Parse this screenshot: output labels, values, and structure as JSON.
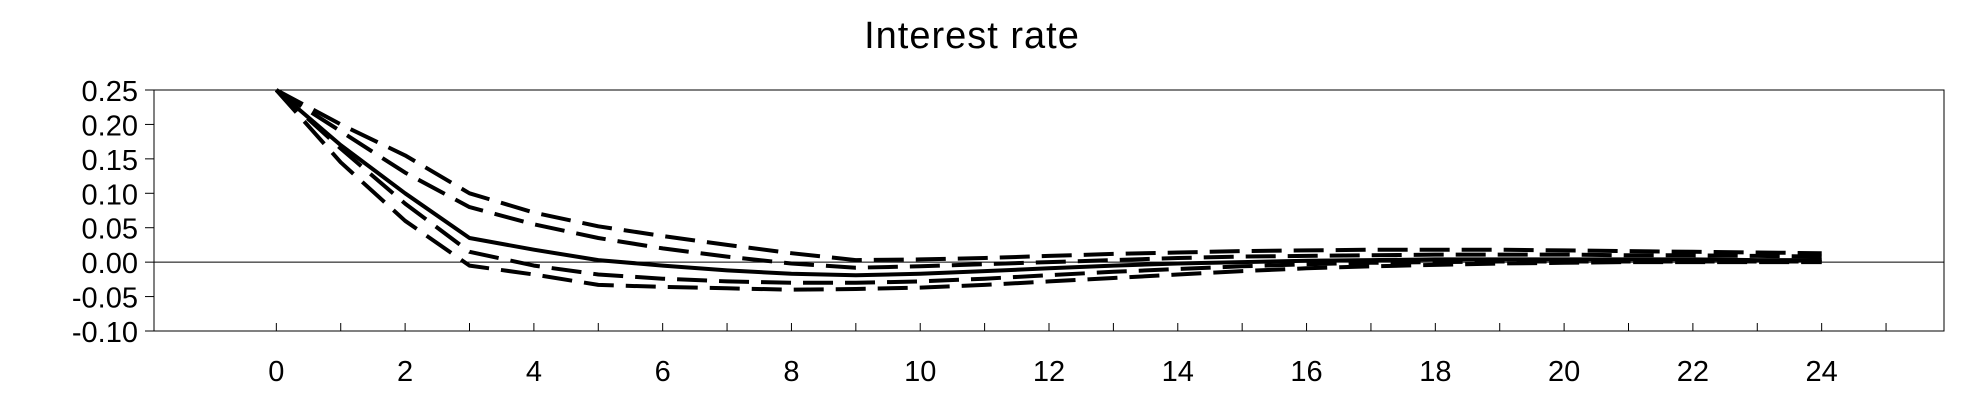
{
  "chart_data": {
    "type": "line",
    "title": "Interest rate",
    "xlabel": "",
    "ylabel": "",
    "xlim": [
      -1.9,
      25.9
    ],
    "ylim": [
      -0.1,
      0.25
    ],
    "x_ticks": [
      0,
      2,
      4,
      6,
      8,
      10,
      12,
      14,
      16,
      18,
      20,
      22,
      24
    ],
    "y_ticks": [
      0.25,
      0.2,
      0.15,
      0.1,
      0.05,
      0.0,
      -0.05,
      -0.1
    ],
    "y_tick_labels": [
      "0.25",
      "0.20",
      "0.15",
      "0.10",
      "0.05",
      "0.00",
      "-0.05",
      "-0.10"
    ],
    "grid": false,
    "zero_line": true,
    "color": "#000000",
    "x": [
      0,
      1,
      2,
      3,
      4,
      5,
      6,
      7,
      8,
      9,
      10,
      11,
      12,
      13,
      14,
      15,
      16,
      17,
      18,
      19,
      20,
      21,
      22,
      23,
      24
    ],
    "series": [
      {
        "style": "solid",
        "values": [
          0.25,
          0.17,
          0.1,
          0.035,
          0.018,
          0.003,
          -0.005,
          -0.012,
          -0.017,
          -0.019,
          -0.017,
          -0.013,
          -0.009,
          -0.005,
          -0.002,
          0.0,
          0.002,
          0.003,
          0.004,
          0.004,
          0.004,
          0.004,
          0.004,
          0.003,
          0.003
        ]
      },
      {
        "style": "dashed",
        "values": [
          0.25,
          0.2,
          0.155,
          0.1,
          0.072,
          0.052,
          0.038,
          0.025,
          0.013,
          0.003,
          0.004,
          0.006,
          0.009,
          0.012,
          0.014,
          0.016,
          0.017,
          0.018,
          0.018,
          0.018,
          0.017,
          0.016,
          0.015,
          0.014,
          0.013
        ]
      },
      {
        "style": "dashed",
        "values": [
          0.25,
          0.19,
          0.13,
          0.08,
          0.055,
          0.035,
          0.02,
          0.008,
          -0.002,
          -0.008,
          -0.006,
          -0.003,
          0.0,
          0.003,
          0.006,
          0.008,
          0.009,
          0.01,
          0.011,
          0.011,
          0.011,
          0.01,
          0.01,
          0.009,
          0.008
        ]
      },
      {
        "style": "dashed",
        "values": [
          0.25,
          0.165,
          0.085,
          0.015,
          -0.005,
          -0.018,
          -0.024,
          -0.028,
          -0.03,
          -0.03,
          -0.028,
          -0.024,
          -0.019,
          -0.014,
          -0.01,
          -0.006,
          -0.003,
          -0.001,
          0.0,
          0.001,
          0.001,
          0.001,
          0.001,
          0.001,
          0.001
        ]
      },
      {
        "style": "dashed",
        "values": [
          0.25,
          0.145,
          0.06,
          -0.005,
          -0.018,
          -0.033,
          -0.036,
          -0.038,
          -0.04,
          -0.039,
          -0.037,
          -0.033,
          -0.028,
          -0.023,
          -0.018,
          -0.013,
          -0.009,
          -0.006,
          -0.004,
          -0.002,
          -0.001,
          0.0,
          0.0,
          0.0,
          0.0
        ]
      }
    ]
  }
}
